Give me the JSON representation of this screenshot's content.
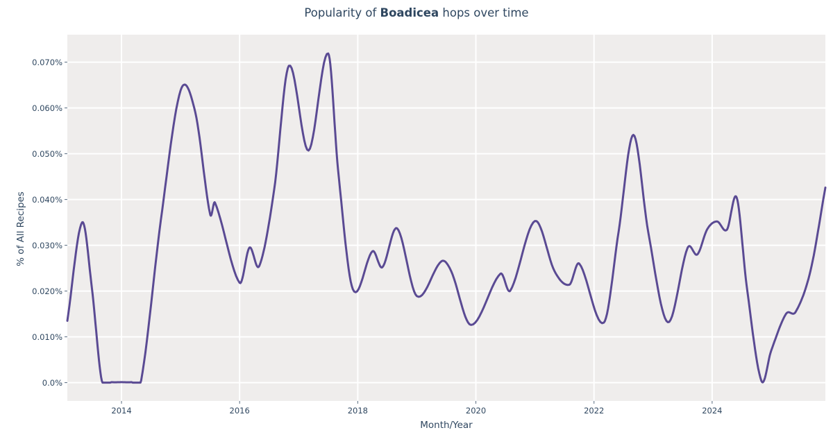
{
  "title": {
    "prefix": "Popularity of ",
    "bold": "Boadicea",
    "suffix": " hops over time"
  },
  "colors": {
    "figure_bg": "#ffffff",
    "plot_bg": "#efedec",
    "grid": "#ffffff",
    "line": "#5a4a93",
    "text": "#2f4760"
  },
  "chart_data": {
    "type": "line",
    "title": "Popularity of Boadicea hops over time",
    "xlabel": "Month/Year",
    "ylabel": "% of All Recipes",
    "y_unit": "percent of all recipes",
    "grid": true,
    "legend": false,
    "x_range_decimal_years": [
      2013.083,
      2025.917
    ],
    "ylim": [
      -0.004,
      0.076
    ],
    "x_ticks": [
      {
        "label": "2014",
        "value": 2014
      },
      {
        "label": "2016",
        "value": 2016
      },
      {
        "label": "2018",
        "value": 2018
      },
      {
        "label": "2020",
        "value": 2020
      },
      {
        "label": "2022",
        "value": 2022
      },
      {
        "label": "2024",
        "value": 2024
      }
    ],
    "y_ticks": [
      {
        "label": "0.0%",
        "value": 0.0
      },
      {
        "label": "0.010%",
        "value": 0.01
      },
      {
        "label": "0.020%",
        "value": 0.02
      },
      {
        "label": "0.030%",
        "value": 0.03
      },
      {
        "label": "0.040%",
        "value": 0.04
      },
      {
        "label": "0.050%",
        "value": 0.05
      },
      {
        "label": "0.060%",
        "value": 0.06
      },
      {
        "label": "0.070%",
        "value": 0.07
      }
    ],
    "series": [
      {
        "name": "Boadicea",
        "x": [
          "2013-02",
          "2013-05",
          "2013-07",
          "2013-09",
          "2013-11",
          "2014-01",
          "2014-03",
          "2014-05",
          "2014-09",
          "2015-01",
          "2015-04",
          "2015-07",
          "2015-08",
          "2016-01",
          "2016-03",
          "2016-05",
          "2016-08",
          "2016-11",
          "2017-03",
          "2017-07",
          "2017-09",
          "2017-12",
          "2018-04",
          "2018-06",
          "2018-09",
          "2019-01",
          "2019-06",
          "2019-08",
          "2019-12",
          "2020-06",
          "2020-08",
          "2021-01",
          "2021-05",
          "2021-08",
          "2021-10",
          "2022-03",
          "2022-06",
          "2022-09",
          "2022-12",
          "2023-04",
          "2023-08",
          "2023-10",
          "2023-12",
          "2024-02",
          "2024-04",
          "2024-06",
          "2024-08",
          "2024-11",
          "2025-01",
          "2025-04",
          "2025-06",
          "2025-09",
          "2025-12"
        ],
        "y": [
          0.0135,
          0.035,
          0.0205,
          0.0004,
          0.0001,
          0.0001,
          0.0001,
          0.0005,
          0.0355,
          0.0638,
          0.059,
          0.0368,
          0.0393,
          0.0218,
          0.0295,
          0.0255,
          0.042,
          0.0692,
          0.0507,
          0.0719,
          0.0465,
          0.0204,
          0.0287,
          0.0252,
          0.0337,
          0.0189,
          0.0265,
          0.0243,
          0.0126,
          0.0238,
          0.0201,
          0.0353,
          0.0243,
          0.0214,
          0.026,
          0.0131,
          0.033,
          0.0541,
          0.033,
          0.0132,
          0.0294,
          0.028,
          0.0335,
          0.0352,
          0.0334,
          0.0404,
          0.0213,
          0.0004,
          0.007,
          0.015,
          0.0155,
          0.0245,
          0.0426
        ]
      }
    ]
  }
}
